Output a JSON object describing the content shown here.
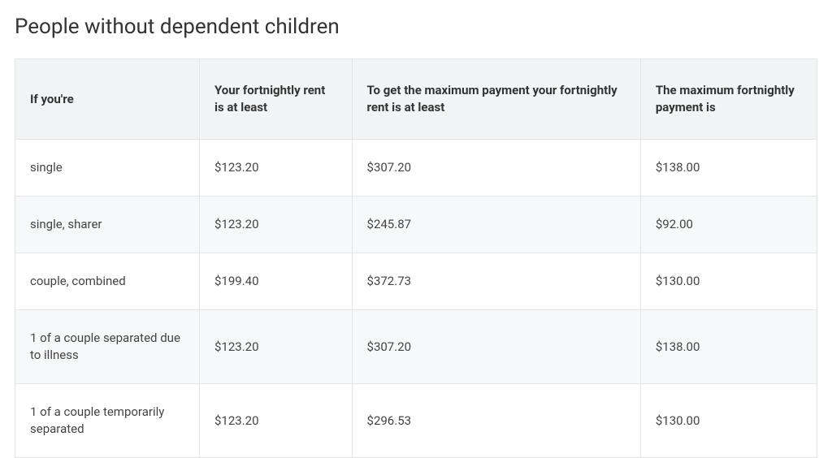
{
  "title": "People without dependent children",
  "table": {
    "type": "table",
    "columns": [
      "If you're",
      "Your fortnightly rent is at least",
      "To get the maximum payment your fortnightly rent is at least",
      "The maximum fortnightly payment is"
    ],
    "rows": [
      [
        "single",
        "$123.20",
        "$307.20",
        "$138.00"
      ],
      [
        "single, sharer",
        "$123.20",
        "$245.87",
        "$92.00"
      ],
      [
        "couple, combined",
        "$199.40",
        "$372.73",
        "$130.00"
      ],
      [
        "1 of a couple separated due to illness",
        "$123.20",
        "$307.20",
        "$138.00"
      ],
      [
        "1 of a couple temporarily separated",
        "$123.20",
        "$296.53",
        "$130.00"
      ]
    ],
    "column_widths_pct": [
      23,
      19,
      36,
      22
    ],
    "header_background_color": "#f2f4f6",
    "row_alt_background_color": "#f7f8f9",
    "row_background_color": "#ffffff",
    "border_color": "#e5e5e5",
    "header_font_weight": 700,
    "header_font_size_pt": 11,
    "body_font_size_pt": 11,
    "text_color": "#333333"
  },
  "title_font_size_pt": 20,
  "title_font_weight": 400,
  "background_color": "#ffffff"
}
